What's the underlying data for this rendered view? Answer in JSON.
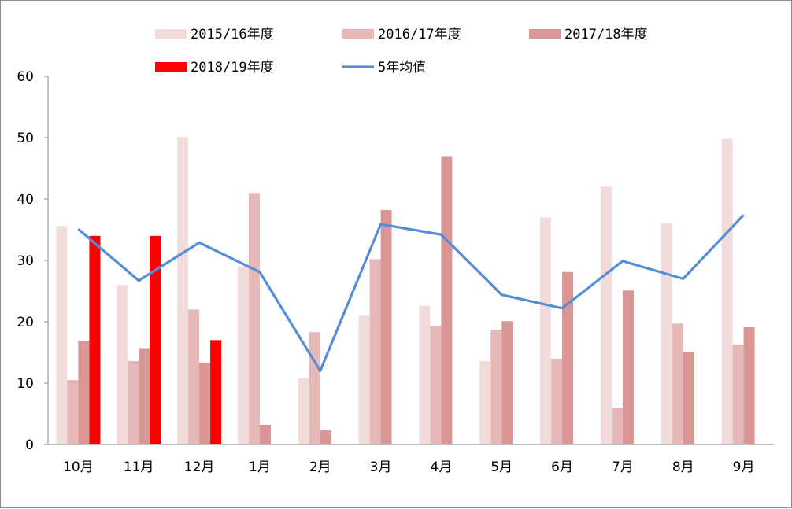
{
  "chart_data": {
    "type": "bar",
    "categories": [
      "10月",
      "11月",
      "12月",
      "1月",
      "2月",
      "3月",
      "4月",
      "5月",
      "6月",
      "7月",
      "8月",
      "9月"
    ],
    "series": [
      {
        "name": "2015/16年度",
        "type": "bar",
        "color": "#f2dcdb",
        "values": [
          35.6,
          26,
          50.1,
          29,
          10.8,
          21,
          22.6,
          13.6,
          37,
          42,
          36,
          49.8
        ]
      },
      {
        "name": "2016/17年度",
        "type": "bar",
        "color": "#e6b9b8",
        "values": [
          10.5,
          13.6,
          22,
          41,
          18.3,
          30.2,
          19.3,
          18.7,
          14,
          6,
          19.7,
          16.3
        ]
      },
      {
        "name": "2017/18年度",
        "type": "bar",
        "color": "#d99694",
        "values": [
          16.9,
          15.7,
          13.3,
          3.2,
          2.3,
          38.2,
          47,
          20.1,
          28.1,
          25.1,
          15.1,
          19.1
        ]
      },
      {
        "name": "2018/19年度",
        "type": "bar",
        "color": "#ff0000",
        "values": [
          34,
          34,
          17,
          null,
          null,
          null,
          null,
          null,
          null,
          null,
          null,
          null
        ]
      },
      {
        "name": "5年均值",
        "type": "line",
        "color": "#558ed5",
        "values": [
          35.1,
          26.7,
          32.9,
          28.1,
          12,
          35.9,
          34.2,
          24.4,
          22.2,
          29.9,
          27,
          37.4
        ]
      }
    ],
    "title": "",
    "xlabel": "",
    "ylabel": "",
    "ylim": [
      0,
      60
    ],
    "yticks": [
      "0",
      "10",
      "20",
      "30",
      "40",
      "50",
      "60"
    ],
    "grid": false,
    "legend_position": "top"
  }
}
